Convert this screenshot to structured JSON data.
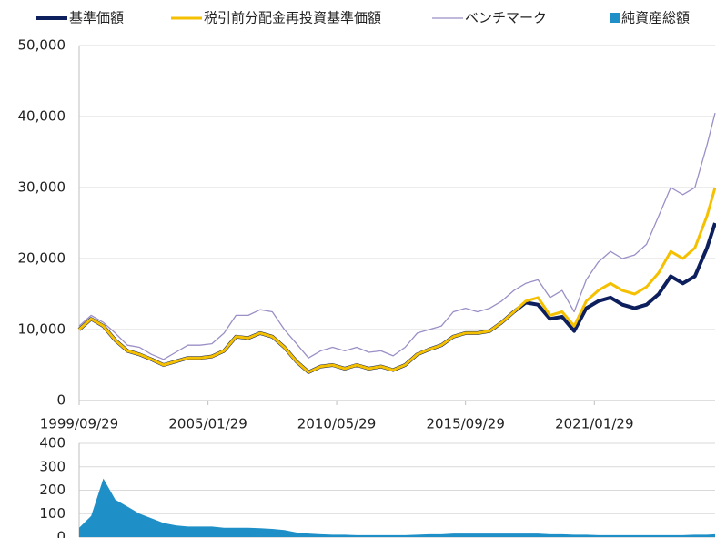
{
  "chart_data": [
    {
      "type": "line",
      "x": [
        "1999/09/29",
        "2000/03/29",
        "2000/09/29",
        "2001/03/29",
        "2001/09/29",
        "2002/03/29",
        "2002/09/29",
        "2003/03/29",
        "2003/09/29",
        "2004/03/29",
        "2004/09/29",
        "2005/03/29",
        "2005/09/29",
        "2006/03/29",
        "2006/09/29",
        "2007/03/29",
        "2007/09/29",
        "2008/03/29",
        "2008/09/29",
        "2009/03/29",
        "2009/09/29",
        "2010/03/29",
        "2010/09/29",
        "2011/03/29",
        "2011/09/29",
        "2012/03/29",
        "2012/09/29",
        "2013/03/29",
        "2013/09/29",
        "2014/03/29",
        "2014/09/29",
        "2015/03/29",
        "2015/09/29",
        "2016/03/29",
        "2016/09/29",
        "2017/03/29",
        "2017/09/29",
        "2018/03/29",
        "2018/09/29",
        "2019/03/29",
        "2019/09/29",
        "2020/03/29",
        "2020/09/29",
        "2021/03/29",
        "2021/09/29",
        "2022/03/29",
        "2022/09/29",
        "2023/03/29",
        "2023/09/29",
        "2024/03/29",
        "2024/09/29",
        "2025/03/29",
        "2025/09/29",
        "2026/01/29"
      ],
      "series": [
        {
          "name": "ベンチマーク",
          "color": "#9b8fc6",
          "width": 1.3,
          "values": [
            10500,
            12000,
            11000,
            9500,
            7800,
            7500,
            6500,
            5800,
            6800,
            7800,
            7800,
            8000,
            9500,
            12000,
            12000,
            12800,
            12500,
            10000,
            8000,
            6000,
            7000,
            7500,
            7000,
            7500,
            6800,
            7000,
            6300,
            7500,
            9500,
            10000,
            10500,
            12500,
            13000,
            12500,
            13000,
            14000,
            15500,
            16500,
            17000,
            14500,
            15500,
            12500,
            17000,
            19500,
            21000,
            20000,
            20500,
            22000,
            26000,
            30000,
            29000,
            30000,
            36000,
            40500
          ]
        },
        {
          "name": "基準価額",
          "color": "#0d1f5c",
          "width": 4,
          "values": [
            10000,
            11500,
            10500,
            8500,
            7000,
            6500,
            5800,
            5000,
            5500,
            6000,
            6000,
            6200,
            7000,
            9000,
            8800,
            9500,
            9000,
            7500,
            5500,
            4000,
            4800,
            5000,
            4500,
            5000,
            4500,
            4800,
            4300,
            5000,
            6500,
            7200,
            7800,
            9000,
            9500,
            9500,
            9800,
            11000,
            12500,
            13800,
            13500,
            11500,
            11800,
            9800,
            13000,
            14000,
            14500,
            13500,
            13000,
            13500,
            15000,
            17500,
            16500,
            17500,
            21500,
            25000
          ]
        },
        {
          "name": "税引前分配金再投資基準価額",
          "color": "#f5c000",
          "width": 3,
          "values": [
            10000,
            11500,
            10500,
            8500,
            7000,
            6500,
            5800,
            5000,
            5500,
            6000,
            6000,
            6200,
            7000,
            9000,
            8800,
            9500,
            9000,
            7500,
            5500,
            4000,
            4800,
            5000,
            4500,
            5000,
            4500,
            4800,
            4300,
            5000,
            6500,
            7200,
            7800,
            9000,
            9500,
            9500,
            9800,
            11000,
            12500,
            14000,
            14500,
            12000,
            12500,
            10500,
            14000,
            15500,
            16500,
            15500,
            15000,
            16000,
            18000,
            21000,
            20000,
            21500,
            26000,
            30000
          ]
        }
      ],
      "xlim": [
        "1999/09/29",
        "2026/01/29"
      ],
      "xticks": [
        "1999/09/29",
        "2005/01/29",
        "2010/05/29",
        "2015/09/29",
        "2021/01/29"
      ],
      "ylim": [
        0,
        50000
      ],
      "yticks": [
        0,
        {
          "value": 10000,
          "label": "10,000"
        },
        {
          "value": 20000,
          "label": "20,000"
        },
        {
          "value": 30000,
          "label": "30,000"
        },
        {
          "value": 40000,
          "label": "40,000"
        },
        {
          "value": 50000,
          "label": "50,000"
        }
      ],
      "grid": true
    },
    {
      "type": "area",
      "x": [
        "1999/09/29",
        "2000/03/29",
        "2000/09/29",
        "2001/03/29",
        "2001/09/29",
        "2002/03/29",
        "2002/09/29",
        "2003/03/29",
        "2003/09/29",
        "2004/03/29",
        "2004/09/29",
        "2005/03/29",
        "2005/09/29",
        "2006/03/29",
        "2006/09/29",
        "2007/03/29",
        "2007/09/29",
        "2008/03/29",
        "2008/09/29",
        "2009/03/29",
        "2009/09/29",
        "2010/03/29",
        "2010/09/29",
        "2011/03/29",
        "2011/09/29",
        "2012/03/29",
        "2012/09/29",
        "2013/03/29",
        "2013/09/29",
        "2014/03/29",
        "2014/09/29",
        "2015/03/29",
        "2015/09/29",
        "2016/03/29",
        "2016/09/29",
        "2017/03/29",
        "2017/09/29",
        "2018/03/29",
        "2018/09/29",
        "2019/03/29",
        "2019/09/29",
        "2020/03/29",
        "2020/09/29",
        "2021/03/29",
        "2021/09/29",
        "2022/03/29",
        "2022/09/29",
        "2023/03/29",
        "2023/09/29",
        "2024/03/29",
        "2024/09/29",
        "2025/03/29",
        "2025/09/29",
        "2026/01/29"
      ],
      "series": [
        {
          "name": "純資産総額",
          "color": "#1f8fc8",
          "values": [
            40,
            90,
            250,
            160,
            130,
            100,
            80,
            60,
            50,
            45,
            45,
            45,
            40,
            40,
            40,
            38,
            35,
            30,
            20,
            15,
            12,
            10,
            10,
            8,
            8,
            8,
            8,
            8,
            10,
            12,
            12,
            15,
            15,
            15,
            15,
            15,
            15,
            15,
            15,
            12,
            12,
            10,
            10,
            8,
            8,
            8,
            8,
            8,
            8,
            8,
            8,
            10,
            10,
            12
          ]
        }
      ],
      "xlim": [
        "1999/09/29",
        "2026/01/29"
      ],
      "ylim": [
        0,
        400
      ],
      "yticks": [
        0,
        100,
        200,
        300,
        400
      ],
      "grid": true
    }
  ]
}
